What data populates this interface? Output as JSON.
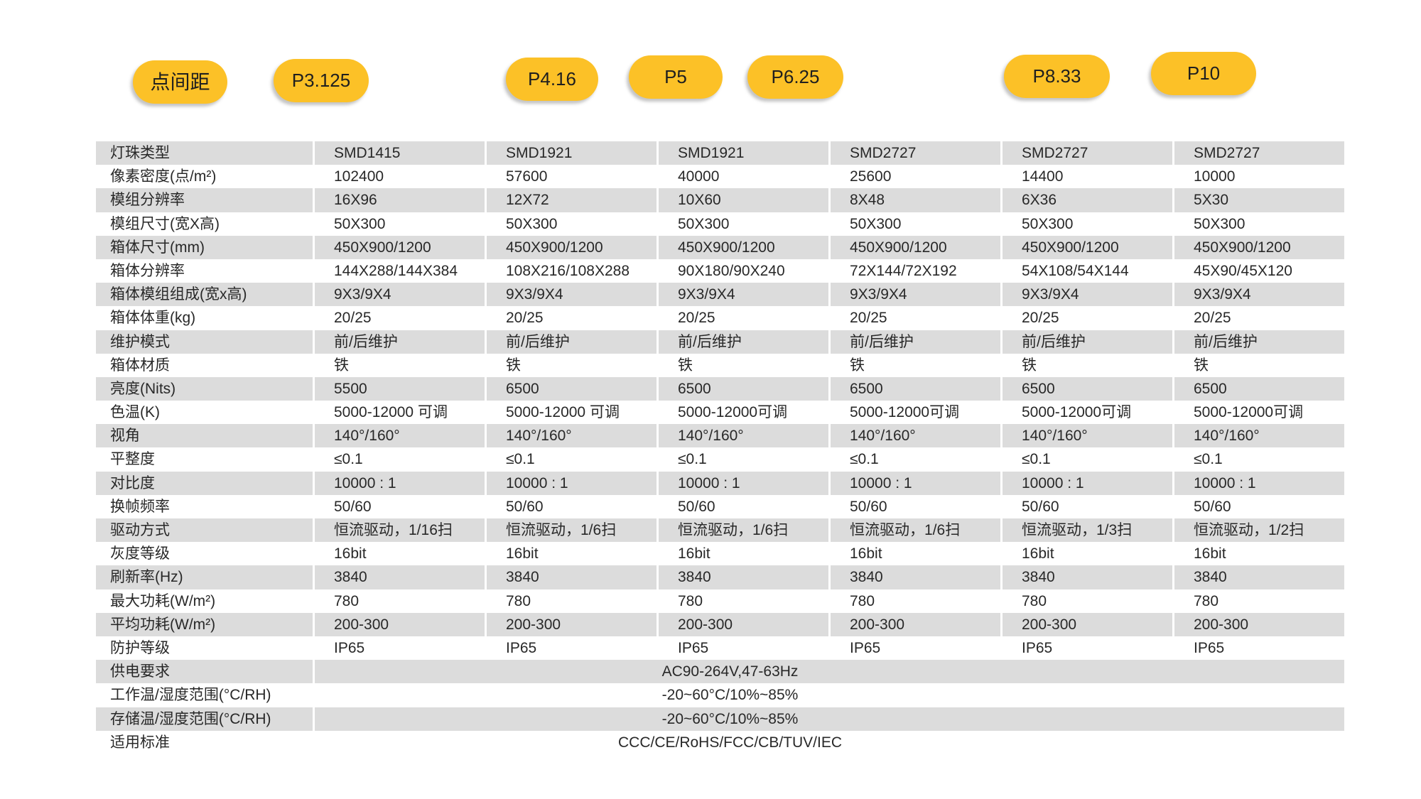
{
  "page": {
    "background_color": "#ffffff",
    "accent_color": "#FCC127",
    "stripe_color": "#dcdcdc",
    "text_color": "#282828"
  },
  "header": {
    "pills": [
      {
        "label": "点间距"
      },
      {
        "label": "P3.125"
      },
      {
        "label": "P4.16"
      },
      {
        "label": "P5"
      },
      {
        "label": "P6.25"
      },
      {
        "label": "P8.33"
      },
      {
        "label": "P10"
      }
    ]
  },
  "table": {
    "columns": [
      "P3.125",
      "P4.16",
      "P5",
      "P6.25",
      "P8.33",
      "P10"
    ],
    "rows": [
      {
        "label": "灯珠类型",
        "values": [
          "SMD1415",
          "SMD1921",
          "SMD1921",
          "SMD2727",
          "SMD2727",
          "SMD2727"
        ]
      },
      {
        "label": "像素密度(点/m²)",
        "values": [
          "102400",
          "57600",
          "40000",
          "25600",
          "14400",
          "10000"
        ]
      },
      {
        "label": "模组分辨率",
        "values": [
          "16X96",
          "12X72",
          "10X60",
          "8X48",
          "6X36",
          "5X30"
        ]
      },
      {
        "label": "模组尺寸(宽X高)",
        "values": [
          "50X300",
          "50X300",
          "50X300",
          "50X300",
          "50X300",
          "50X300"
        ]
      },
      {
        "label": "箱体尺寸(mm)",
        "values": [
          "450X900/1200",
          "450X900/1200",
          "450X900/1200",
          "450X900/1200",
          "450X900/1200",
          "450X900/1200"
        ]
      },
      {
        "label": "箱体分辨率",
        "values": [
          "144X288/144X384",
          "108X216/108X288",
          "90X180/90X240",
          "72X144/72X192",
          "54X108/54X144",
          "45X90/45X120"
        ]
      },
      {
        "label": "箱体模组组成(宽x高)",
        "values": [
          "9X3/9X4",
          "9X3/9X4",
          "9X3/9X4",
          "9X3/9X4",
          "9X3/9X4",
          "9X3/9X4"
        ]
      },
      {
        "label": "箱体体重(kg)",
        "values": [
          "20/25",
          "20/25",
          "20/25",
          "20/25",
          "20/25",
          "20/25"
        ]
      },
      {
        "label": "维护模式",
        "values": [
          "前/后维护",
          "前/后维护",
          "前/后维护",
          "前/后维护",
          "前/后维护",
          "前/后维护"
        ]
      },
      {
        "label": "箱体材质",
        "values": [
          "铁",
          "铁",
          "铁",
          "铁",
          "铁",
          "铁"
        ]
      },
      {
        "label": "亮度(Nits)",
        "values": [
          "5500",
          "6500",
          "6500",
          "6500",
          "6500",
          "6500"
        ]
      },
      {
        "label": "色温(K)",
        "values": [
          "5000-12000 可调",
          "5000-12000 可调",
          "5000-12000可调",
          "5000-12000可调",
          "5000-12000可调",
          "5000-12000可调"
        ]
      },
      {
        "label": "视角",
        "values": [
          "140°/160°",
          "140°/160°",
          "140°/160°",
          "140°/160°",
          "140°/160°",
          "140°/160°"
        ]
      },
      {
        "label": "平整度",
        "values": [
          "≤0.1",
          "≤0.1",
          "≤0.1",
          "≤0.1",
          "≤0.1",
          "≤0.1"
        ]
      },
      {
        "label": "对比度",
        "values": [
          "10000 : 1",
          "10000 : 1",
          "10000 : 1",
          "10000 : 1",
          "10000 : 1",
          "10000 : 1"
        ]
      },
      {
        "label": "换帧频率",
        "values": [
          "50/60",
          "50/60",
          "50/60",
          "50/60",
          "50/60",
          "50/60"
        ]
      },
      {
        "label": "驱动方式",
        "values": [
          "恒流驱动，1/16扫",
          "恒流驱动，1/6扫",
          "恒流驱动，1/6扫",
          "恒流驱动，1/6扫",
          "恒流驱动，1/3扫",
          "恒流驱动，1/2扫"
        ]
      },
      {
        "label": "灰度等级",
        "values": [
          "16bit",
          "16bit",
          "16bit",
          "16bit",
          "16bit",
          "16bit"
        ]
      },
      {
        "label": "刷新率(Hz)",
        "values": [
          "3840",
          "3840",
          "3840",
          "3840",
          "3840",
          "3840"
        ]
      },
      {
        "label": "最大功耗(W/m²)",
        "values": [
          "780",
          "780",
          "780",
          "780",
          "780",
          "780"
        ]
      },
      {
        "label": "平均功耗(W/m²)",
        "values": [
          "200-300",
          "200-300",
          "200-300",
          "200-300",
          "200-300",
          "200-300"
        ]
      },
      {
        "label": "防护等级",
        "values": [
          "IP65",
          "IP65",
          "IP65",
          "IP65",
          "IP65",
          "IP65"
        ]
      },
      {
        "label": "供电要求",
        "merged": "AC90-264V,47-63Hz"
      },
      {
        "label": "工作温/湿度范围(°C/RH)",
        "merged": "-20~60°C/10%~85%"
      },
      {
        "label": "存储温/湿度范围(°C/RH)",
        "merged": "-20~60°C/10%~85%"
      },
      {
        "label": "适用标准",
        "merged": "CCC/CE/RoHS/FCC/CB/TUV/IEC"
      }
    ]
  }
}
